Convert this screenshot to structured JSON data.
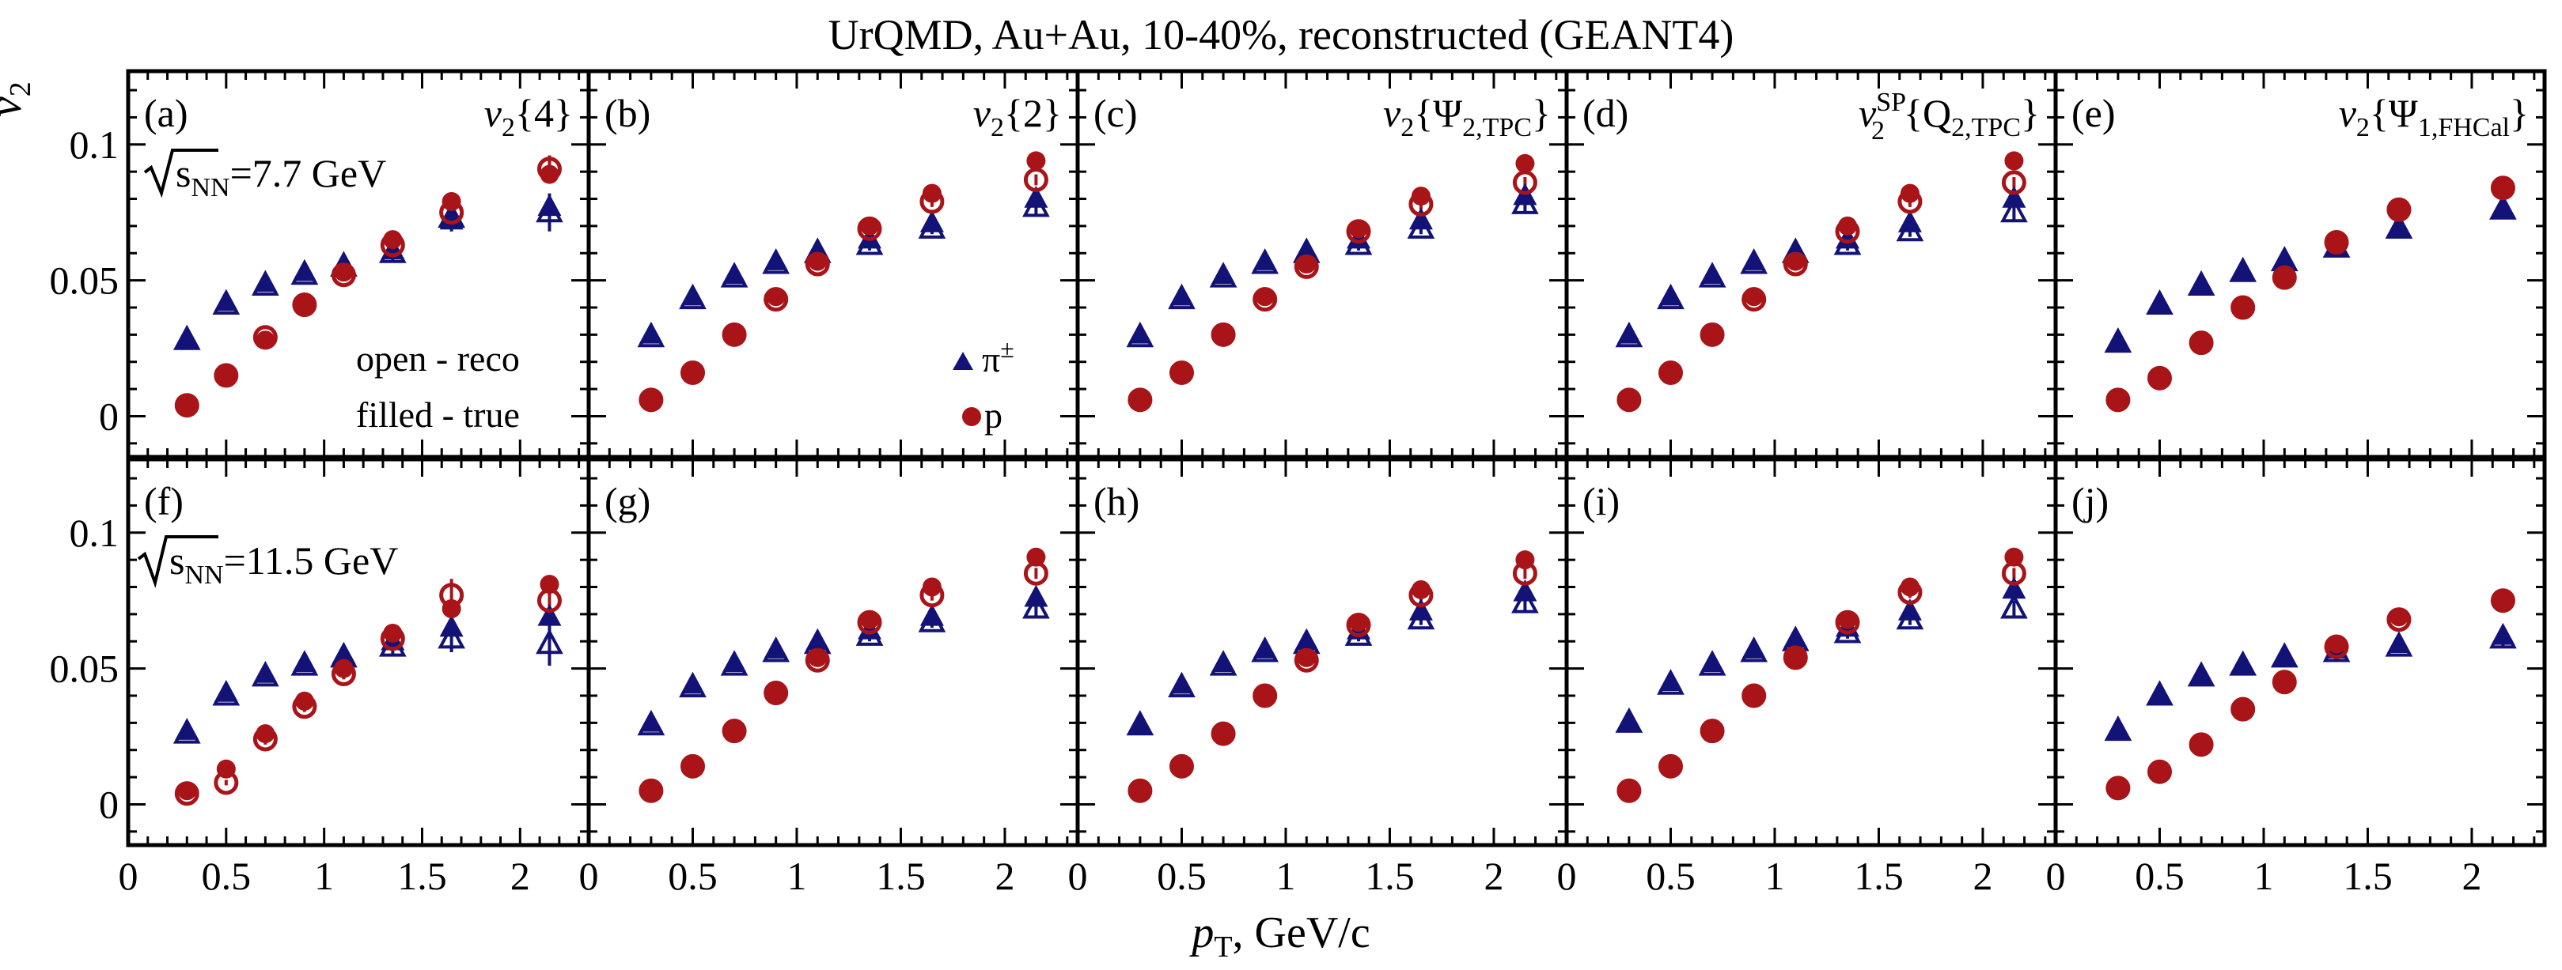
{
  "title": "UrQMD, Au+Au, 10-40%, reconstructed (GEANT4)",
  "y_axis_symbol": "v",
  "y_axis_subscript": "2",
  "x_axis_label_main": "p",
  "x_axis_label_sub": "T",
  "x_axis_label_rest": ", GeV/c",
  "colors": {
    "pion": "#121277",
    "proton": "#a81418",
    "frame": "#000000"
  },
  "legend": {
    "open_label": "open - reco",
    "filled_label": "filled - true",
    "pion_label": "π",
    "pion_sup": "±",
    "proton_label": "p"
  },
  "energy_labels": [
    {
      "prefix": "s",
      "sub": "NN",
      "value": "=7.7 GeV"
    },
    {
      "prefix": "s",
      "sub": "NN",
      "value": "=11.5 GeV"
    }
  ],
  "methods": [
    {
      "v": "v",
      "sub": "2",
      "sup": "",
      "brace": "{4}",
      "arg": "",
      "arg_sub": ""
    },
    {
      "v": "v",
      "sub": "2",
      "sup": "",
      "brace": "{2}",
      "arg": "",
      "arg_sub": ""
    },
    {
      "v": "v",
      "sub": "2",
      "sup": "",
      "brace": "",
      "arg": "Ψ",
      "arg_sub": "2,TPC"
    },
    {
      "v": "v",
      "sub": "2",
      "sup": "SP",
      "brace": "",
      "arg": "Q",
      "arg_sub": "2,TPC"
    },
    {
      "v": "v",
      "sub": "2",
      "sup": "",
      "brace": "",
      "arg": "Ψ",
      "arg_sub": "1,FHCal"
    }
  ],
  "chart_data": {
    "type": "scatter",
    "title": "UrQMD, Au+Au, 10-40%, reconstructed (GEANT4)",
    "xlabel": "p_T, GeV/c",
    "ylabel": "v_2",
    "xlim": [
      0,
      2.35
    ],
    "ylim": [
      -0.015,
      0.127
    ],
    "x_ticks": [
      0,
      0.5,
      1,
      1.5,
      2
    ],
    "x_tick_labels": [
      "0",
      "0.5",
      "1",
      "1.5",
      "2"
    ],
    "y_ticks": [
      0,
      0.05,
      0.1
    ],
    "y_tick_labels": [
      "0",
      "0.05",
      "0.1"
    ],
    "x": [
      0.3,
      0.5,
      0.7,
      0.9,
      1.1,
      1.35,
      1.65,
      2.15
    ],
    "panels": [
      {
        "label": "(a)",
        "row": 0,
        "col": 0,
        "pion_true": [
          0.028,
          0.042,
          0.049,
          0.053,
          0.056,
          0.061,
          0.072,
          0.077
        ],
        "pion_reco": [
          0.028,
          0.041,
          0.048,
          0.052,
          0.055,
          0.06,
          0.073,
          0.075
        ],
        "pion_reco_err": [
          0.001,
          0.001,
          0.001,
          0.002,
          0.002,
          0.003,
          0.005,
          0.007
        ],
        "proton_true": [
          0.004,
          0.015,
          0.028,
          0.041,
          0.053,
          0.065,
          0.079,
          0.089
        ],
        "proton_reco": [
          0.004,
          0.015,
          0.029,
          0.041,
          0.052,
          0.063,
          0.075,
          0.091
        ],
        "proton_reco_err": [
          0.001,
          0.001,
          0.002,
          0.002,
          0.002,
          0.003,
          0.005,
          0.005
        ]
      },
      {
        "label": "(b)",
        "row": 0,
        "col": 1,
        "pion_true": [
          0.03,
          0.044,
          0.052,
          0.057,
          0.061,
          0.065,
          0.071,
          0.08
        ],
        "pion_reco": [
          0.029,
          0.043,
          0.051,
          0.056,
          0.06,
          0.063,
          0.069,
          0.077
        ],
        "pion_reco_err": [
          0.001,
          0.001,
          0.001,
          0.001,
          0.001,
          0.002,
          0.002,
          0.003
        ],
        "proton_true": [
          0.006,
          0.016,
          0.03,
          0.044,
          0.057,
          0.07,
          0.082,
          0.094
        ],
        "proton_reco": [
          0.006,
          0.016,
          0.03,
          0.043,
          0.056,
          0.069,
          0.079,
          0.087
        ],
        "proton_reco_err": [
          0.001,
          0.001,
          0.001,
          0.001,
          0.001,
          0.001,
          0.002,
          0.002
        ]
      },
      {
        "label": "(c)",
        "row": 0,
        "col": 2,
        "pion_true": [
          0.03,
          0.044,
          0.052,
          0.057,
          0.061,
          0.065,
          0.072,
          0.081
        ],
        "pion_reco": [
          0.029,
          0.043,
          0.051,
          0.056,
          0.06,
          0.063,
          0.069,
          0.078
        ],
        "pion_reco_err": [
          0.001,
          0.001,
          0.001,
          0.001,
          0.001,
          0.002,
          0.002,
          0.003
        ],
        "proton_true": [
          0.006,
          0.016,
          0.03,
          0.044,
          0.056,
          0.069,
          0.081,
          0.093
        ],
        "proton_reco": [
          0.006,
          0.016,
          0.03,
          0.043,
          0.055,
          0.068,
          0.078,
          0.086
        ],
        "proton_reco_err": [
          0.001,
          0.001,
          0.001,
          0.001,
          0.001,
          0.001,
          0.002,
          0.002
        ]
      },
      {
        "label": "(d)",
        "row": 0,
        "col": 3,
        "pion_true": [
          0.03,
          0.044,
          0.052,
          0.057,
          0.061,
          0.065,
          0.071,
          0.08
        ],
        "pion_reco": [
          0.029,
          0.043,
          0.051,
          0.056,
          0.06,
          0.063,
          0.068,
          0.075
        ],
        "pion_reco_err": [
          0.001,
          0.001,
          0.001,
          0.001,
          0.001,
          0.002,
          0.002,
          0.003
        ],
        "proton_true": [
          0.006,
          0.016,
          0.03,
          0.044,
          0.057,
          0.07,
          0.082,
          0.094
        ],
        "proton_reco": [
          0.006,
          0.016,
          0.03,
          0.043,
          0.056,
          0.068,
          0.079,
          0.086
        ],
        "proton_reco_err": [
          0.001,
          0.001,
          0.001,
          0.001,
          0.001,
          0.001,
          0.002,
          0.002
        ]
      },
      {
        "label": "(e)",
        "row": 0,
        "col": 4,
        "pion_true": [
          0.027,
          0.041,
          0.048,
          0.053,
          0.057,
          0.062,
          0.069,
          0.076
        ],
        "pion_reco": [
          0.027,
          0.041,
          0.048,
          0.053,
          0.057,
          0.062,
          0.069,
          0.076
        ],
        "pion_reco_err": [
          0.001,
          0.001,
          0.001,
          0.001,
          0.001,
          0.002,
          0.002,
          0.003
        ],
        "proton_true": [
          0.006,
          0.014,
          0.027,
          0.04,
          0.051,
          0.064,
          0.076,
          0.084
        ],
        "proton_reco": [
          0.006,
          0.014,
          0.027,
          0.04,
          0.051,
          0.064,
          0.076,
          0.084
        ],
        "proton_reco_err": [
          0.001,
          0.001,
          0.001,
          0.001,
          0.001,
          0.001,
          0.002,
          0.002
        ]
      },
      {
        "label": "(f)",
        "row": 1,
        "col": 0,
        "pion_true": [
          0.027,
          0.041,
          0.048,
          0.052,
          0.055,
          0.06,
          0.065,
          0.069
        ],
        "pion_reco": [
          0.026,
          0.04,
          0.047,
          0.051,
          0.054,
          0.058,
          0.061,
          0.059
        ],
        "pion_reco_err": [
          0.001,
          0.001,
          0.001,
          0.002,
          0.002,
          0.003,
          0.005,
          0.008
        ],
        "proton_true": [
          0.005,
          0.013,
          0.026,
          0.038,
          0.05,
          0.063,
          0.072,
          0.081
        ],
        "proton_reco": [
          0.004,
          0.008,
          0.024,
          0.036,
          0.048,
          0.061,
          0.077,
          0.075
        ],
        "proton_reco_err": [
          0.002,
          0.001,
          0.002,
          0.002,
          0.002,
          0.003,
          0.006,
          0.006
        ]
      },
      {
        "label": "(g)",
        "row": 1,
        "col": 1,
        "pion_true": [
          0.03,
          0.044,
          0.052,
          0.057,
          0.06,
          0.064,
          0.069,
          0.076
        ],
        "pion_reco": [
          0.029,
          0.043,
          0.051,
          0.056,
          0.059,
          0.062,
          0.067,
          0.072
        ],
        "pion_reco_err": [
          0.001,
          0.001,
          0.001,
          0.001,
          0.001,
          0.002,
          0.002,
          0.003
        ],
        "proton_true": [
          0.005,
          0.014,
          0.027,
          0.041,
          0.054,
          0.068,
          0.08,
          0.091
        ],
        "proton_reco": [
          0.005,
          0.014,
          0.027,
          0.041,
          0.053,
          0.067,
          0.077,
          0.085
        ],
        "proton_reco_err": [
          0.001,
          0.001,
          0.001,
          0.001,
          0.001,
          0.001,
          0.002,
          0.002
        ]
      },
      {
        "label": "(h)",
        "row": 1,
        "col": 2,
        "pion_true": [
          0.029,
          0.044,
          0.052,
          0.057,
          0.06,
          0.064,
          0.071,
          0.078
        ],
        "pion_reco": [
          0.029,
          0.043,
          0.051,
          0.056,
          0.059,
          0.062,
          0.068,
          0.074
        ],
        "pion_reco_err": [
          0.001,
          0.001,
          0.001,
          0.001,
          0.001,
          0.002,
          0.002,
          0.003
        ],
        "proton_true": [
          0.005,
          0.014,
          0.026,
          0.04,
          0.054,
          0.067,
          0.079,
          0.09
        ],
        "proton_reco": [
          0.005,
          0.014,
          0.026,
          0.04,
          0.053,
          0.066,
          0.077,
          0.085
        ],
        "proton_reco_err": [
          0.001,
          0.001,
          0.001,
          0.001,
          0.001,
          0.001,
          0.002,
          0.002
        ]
      },
      {
        "label": "(i)",
        "row": 1,
        "col": 3,
        "pion_true": [
          0.03,
          0.045,
          0.052,
          0.057,
          0.061,
          0.065,
          0.071,
          0.079
        ],
        "pion_reco": [
          0.03,
          0.044,
          0.051,
          0.056,
          0.06,
          0.063,
          0.068,
          0.072
        ],
        "pion_reco_err": [
          0.001,
          0.001,
          0.001,
          0.001,
          0.001,
          0.002,
          0.002,
          0.003
        ],
        "proton_true": [
          0.005,
          0.014,
          0.027,
          0.04,
          0.054,
          0.068,
          0.08,
          0.091
        ],
        "proton_reco": [
          0.005,
          0.014,
          0.027,
          0.04,
          0.054,
          0.067,
          0.078,
          0.085
        ],
        "proton_reco_err": [
          0.001,
          0.001,
          0.001,
          0.001,
          0.001,
          0.001,
          0.002,
          0.002
        ]
      },
      {
        "label": "(j)",
        "row": 1,
        "col": 4,
        "pion_true": [
          0.027,
          0.04,
          0.047,
          0.051,
          0.054,
          0.057,
          0.059,
          0.062
        ],
        "pion_reco": [
          0.027,
          0.04,
          0.047,
          0.051,
          0.054,
          0.056,
          0.058,
          0.061
        ],
        "pion_reco_err": [
          0.001,
          0.001,
          0.001,
          0.001,
          0.001,
          0.002,
          0.002,
          0.003
        ],
        "proton_true": [
          0.006,
          0.012,
          0.022,
          0.035,
          0.045,
          0.059,
          0.069,
          0.075
        ],
        "proton_reco": [
          0.006,
          0.012,
          0.022,
          0.035,
          0.045,
          0.058,
          0.068,
          0.075
        ],
        "proton_reco_err": [
          0.001,
          0.001,
          0.001,
          0.001,
          0.001,
          0.001,
          0.002,
          0.002
        ]
      }
    ]
  }
}
